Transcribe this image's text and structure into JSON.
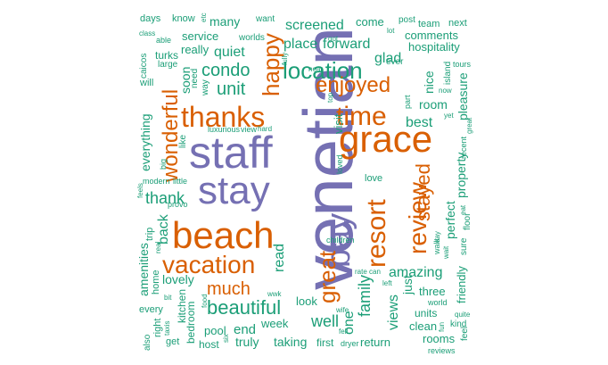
{
  "colors": {
    "teal": "#1b9e77",
    "orange": "#d95f02",
    "purple": "#7570b3"
  },
  "words": [
    {
      "text": "venetian",
      "color": "purple"
    },
    {
      "text": "staff",
      "color": "purple"
    },
    {
      "text": "stay",
      "color": "purple"
    },
    {
      "text": "grace",
      "color": "orange"
    },
    {
      "text": "beach",
      "color": "orange"
    },
    {
      "text": "bay",
      "color": "purple"
    },
    {
      "text": "resort",
      "color": "orange"
    },
    {
      "text": "review",
      "color": "orange"
    },
    {
      "text": "thanks",
      "color": "orange"
    },
    {
      "text": "time",
      "color": "orange"
    },
    {
      "text": "vacation",
      "color": "orange"
    },
    {
      "text": "great",
      "color": "orange"
    },
    {
      "text": "location",
      "color": "teal"
    },
    {
      "text": "enjoyed",
      "color": "orange"
    },
    {
      "text": "happy",
      "color": "orange"
    },
    {
      "text": "wonderful",
      "color": "orange"
    },
    {
      "text": "condo",
      "color": "teal"
    },
    {
      "text": "unit",
      "color": "teal"
    },
    {
      "text": "beautiful",
      "color": "teal"
    },
    {
      "text": "much",
      "color": "orange"
    },
    {
      "text": "stayed",
      "color": "orange"
    },
    {
      "text": "thank",
      "color": "teal"
    },
    {
      "text": "quiet",
      "color": "teal"
    },
    {
      "text": "place",
      "color": "teal"
    },
    {
      "text": "forward",
      "color": "teal"
    },
    {
      "text": "glad",
      "color": "teal"
    },
    {
      "text": "screened",
      "color": "teal"
    },
    {
      "text": "family",
      "color": "teal"
    },
    {
      "text": "amazing",
      "color": "teal"
    },
    {
      "text": "views",
      "color": "teal"
    },
    {
      "text": "best",
      "color": "teal"
    },
    {
      "text": "room",
      "color": "teal"
    },
    {
      "text": "nice",
      "color": "teal"
    },
    {
      "text": "property",
      "color": "teal"
    },
    {
      "text": "pleasure",
      "color": "teal"
    },
    {
      "text": "perfect",
      "color": "teal"
    },
    {
      "text": "lovely",
      "color": "teal"
    },
    {
      "text": "read",
      "color": "teal"
    },
    {
      "text": "back",
      "color": "teal"
    },
    {
      "text": "well",
      "color": "teal"
    },
    {
      "text": "one",
      "color": "teal"
    },
    {
      "text": "just",
      "color": "teal"
    },
    {
      "text": "everything",
      "color": "teal"
    },
    {
      "text": "amenities",
      "color": "teal"
    },
    {
      "text": "visit",
      "color": "teal"
    },
    {
      "text": "soon",
      "color": "teal"
    },
    {
      "text": "many",
      "color": "teal"
    },
    {
      "text": "service",
      "color": "teal"
    },
    {
      "text": "really",
      "color": "teal"
    },
    {
      "text": "turks",
      "color": "teal"
    },
    {
      "text": "come",
      "color": "teal"
    },
    {
      "text": "comments",
      "color": "teal"
    },
    {
      "text": "hospitality",
      "color": "teal"
    },
    {
      "text": "team",
      "color": "teal"
    },
    {
      "text": "next",
      "color": "teal"
    },
    {
      "text": "know",
      "color": "teal"
    },
    {
      "text": "days",
      "color": "teal"
    },
    {
      "text": "want",
      "color": "teal"
    },
    {
      "text": "worlds",
      "color": "teal"
    },
    {
      "text": "post",
      "color": "teal"
    },
    {
      "text": "love",
      "color": "teal"
    },
    {
      "text": "week",
      "color": "teal"
    },
    {
      "text": "look",
      "color": "teal"
    },
    {
      "text": "end",
      "color": "teal"
    },
    {
      "text": "pool",
      "color": "teal"
    },
    {
      "text": "truly",
      "color": "teal"
    },
    {
      "text": "taking",
      "color": "teal"
    },
    {
      "text": "first",
      "color": "teal"
    },
    {
      "text": "return",
      "color": "teal"
    },
    {
      "text": "clean",
      "color": "teal"
    },
    {
      "text": "rooms",
      "color": "teal"
    },
    {
      "text": "three",
      "color": "teal"
    },
    {
      "text": "units",
      "color": "teal"
    },
    {
      "text": "friendly",
      "color": "teal"
    },
    {
      "text": "kitchen",
      "color": "teal"
    },
    {
      "text": "bedroom",
      "color": "teal"
    },
    {
      "text": "host",
      "color": "teal"
    },
    {
      "text": "get",
      "color": "teal"
    },
    {
      "text": "right",
      "color": "teal"
    },
    {
      "text": "every",
      "color": "teal"
    },
    {
      "text": "home",
      "color": "teal"
    },
    {
      "text": "trip",
      "color": "teal"
    },
    {
      "text": "little",
      "color": "teal"
    },
    {
      "text": "modern",
      "color": "teal"
    },
    {
      "text": "big",
      "color": "teal"
    },
    {
      "text": "like",
      "color": "teal"
    },
    {
      "text": "luxurious",
      "color": "teal"
    },
    {
      "text": "view",
      "color": "teal"
    },
    {
      "text": "hard",
      "color": "teal"
    },
    {
      "text": "need",
      "color": "teal"
    },
    {
      "text": "way",
      "color": "teal"
    },
    {
      "text": "will",
      "color": "teal"
    },
    {
      "text": "large",
      "color": "teal"
    },
    {
      "text": "caicos",
      "color": "teal"
    },
    {
      "text": "able",
      "color": "teal"
    },
    {
      "text": "class",
      "color": "teal"
    },
    {
      "text": "ever",
      "color": "teal"
    },
    {
      "text": "island",
      "color": "teal"
    },
    {
      "text": "tours",
      "color": "teal"
    },
    {
      "text": "now",
      "color": "teal"
    },
    {
      "text": "yet",
      "color": "teal"
    },
    {
      "text": "recent",
      "color": "teal"
    },
    {
      "text": "floor",
      "color": "teal"
    },
    {
      "text": "sure",
      "color": "teal"
    },
    {
      "text": "walk",
      "color": "teal"
    },
    {
      "text": "day",
      "color": "teal"
    },
    {
      "text": "children",
      "color": "teal"
    },
    {
      "text": "rate",
      "color": "teal"
    },
    {
      "text": "can",
      "color": "teal"
    },
    {
      "text": "loved",
      "color": "teal"
    },
    {
      "text": "part",
      "color": "teal"
    },
    {
      "text": "lot",
      "color": "teal"
    },
    {
      "text": "got",
      "color": "teal"
    },
    {
      "text": "fully",
      "color": "teal"
    },
    {
      "text": "near",
      "color": "teal"
    },
    {
      "text": "top",
      "color": "teal"
    },
    {
      "text": "left",
      "color": "teal"
    },
    {
      "text": "world",
      "color": "teal"
    },
    {
      "text": "kind",
      "color": "teal"
    },
    {
      "text": "quite",
      "color": "teal"
    },
    {
      "text": "feel",
      "color": "teal"
    },
    {
      "text": "reviews",
      "color": "teal"
    },
    {
      "text": "also",
      "color": "teal"
    },
    {
      "text": "taxis",
      "color": "teal"
    },
    {
      "text": "wife",
      "color": "teal"
    },
    {
      "text": "dryer",
      "color": "teal"
    },
    {
      "text": "food",
      "color": "teal"
    },
    {
      "text": "wwk",
      "color": "teal"
    },
    {
      "text": "fell",
      "color": "teal"
    },
    {
      "text": "provo",
      "color": "teal"
    },
    {
      "text": "feels",
      "color": "teal"
    },
    {
      "text": "bit",
      "color": "teal"
    },
    {
      "text": "real",
      "color": "teal"
    },
    {
      "text": "six",
      "color": "teal"
    },
    {
      "text": "etc",
      "color": "teal"
    },
    {
      "text": "eat",
      "color": "teal"
    },
    {
      "text": "fun",
      "color": "teal"
    },
    {
      "text": "wait",
      "color": "teal"
    },
    {
      "text": "great2",
      "color": "teal"
    }
  ]
}
